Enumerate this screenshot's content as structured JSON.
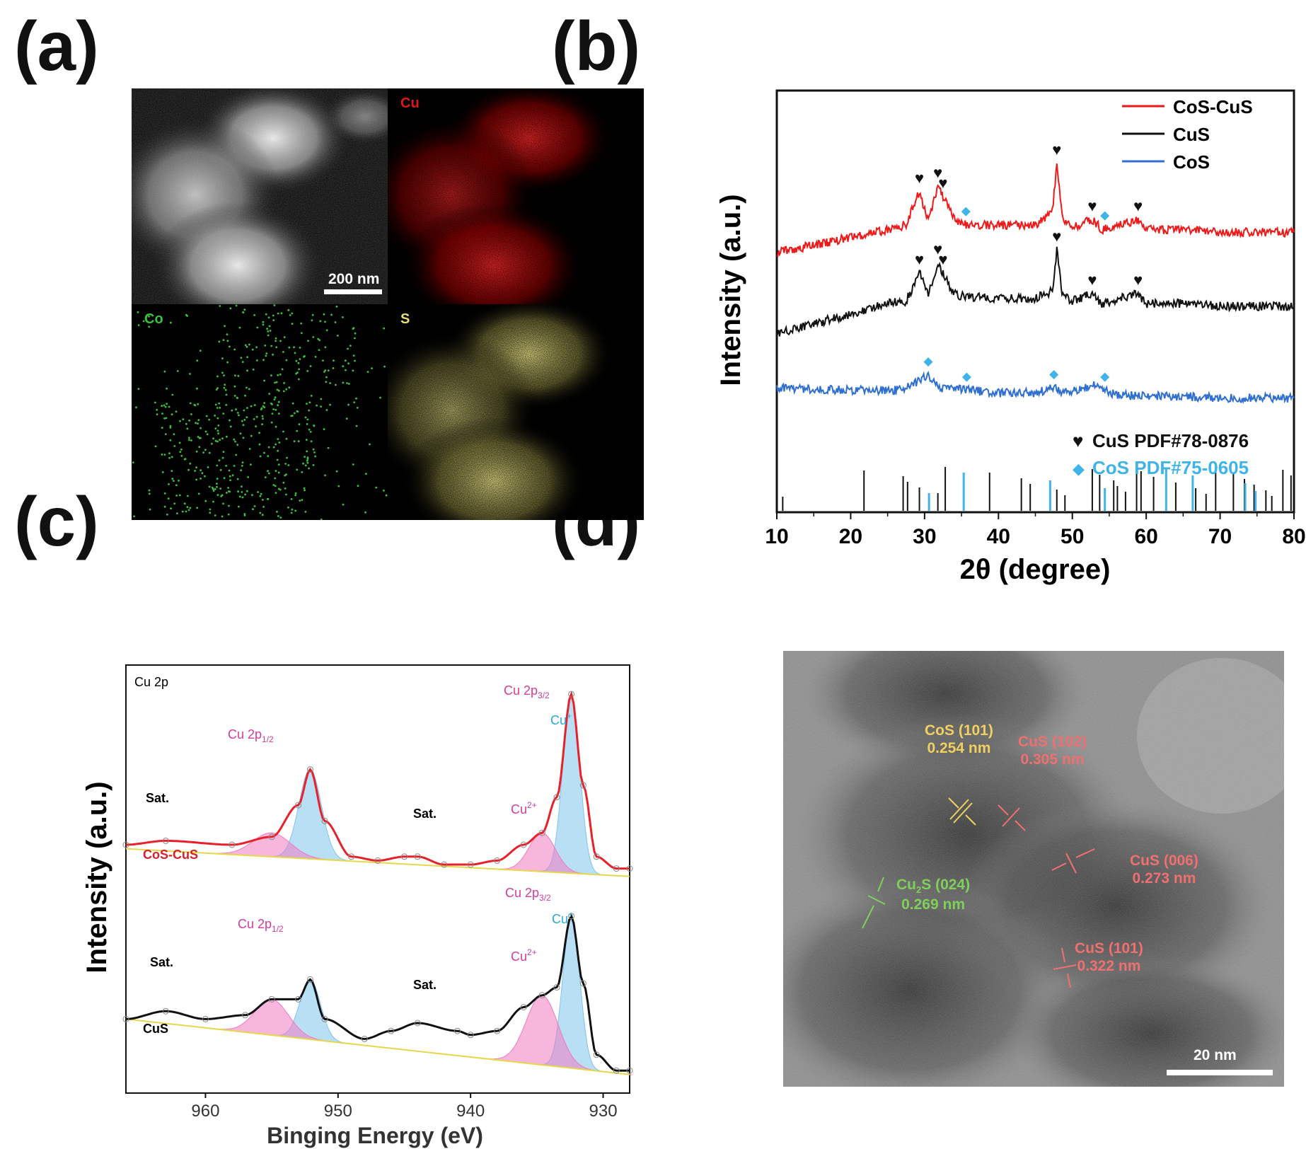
{
  "panel_labels": {
    "a": "(a)",
    "b": "(b)",
    "c": "(c)",
    "d": "(d)"
  },
  "panel_a": {
    "tiles": [
      {
        "label": "",
        "color": "#d8d8d8"
      },
      {
        "label": "Cu",
        "color": "#e01818"
      },
      {
        "label": "Co",
        "color": "#3cc03c"
      },
      {
        "label": "S",
        "color": "#e6dd78"
      }
    ],
    "scale_bar": "200 nm"
  },
  "panel_b": {
    "legend": [
      {
        "label": "CoS-CuS",
        "color": "#ee1a1a"
      },
      {
        "label": "CuS",
        "color": "#111111"
      },
      {
        "label": "CoS",
        "color": "#2e6fd0"
      }
    ],
    "reference_legend": [
      {
        "symbol": "♥",
        "label": "CuS PDF#78-0876",
        "color": "#111111"
      },
      {
        "symbol": "◆",
        "label": "CoS PDF#75-0605",
        "color": "#3fb4ea"
      }
    ]
  },
  "panel_c": {
    "corner_label": "Cu 2p",
    "top_spectrum": {
      "sample": "CoS-CuS",
      "labels": {
        "p12": "Cu 2p",
        "p12_sub": "1/2",
        "p32": "Cu 2p",
        "p32_sub": "3/2",
        "cu_plus": "Cu",
        "cu_plus_sup": "+",
        "cu_2plus": "Cu",
        "cu_2plus_sup": "2+",
        "sat1": "Sat.",
        "sat2": "Sat."
      }
    },
    "bottom_spectrum": {
      "sample": "CuS",
      "labels": {
        "p12": "Cu 2p",
        "p12_sub": "1/2",
        "p32": "Cu 2p",
        "p32_sub": "3/2",
        "cu_plus": "Cu",
        "cu_plus_sup": "+",
        "cu_2plus": "Cu",
        "cu_2plus_sup": "2+",
        "sat1": "Sat.",
        "sat2": "Sat."
      }
    }
  },
  "panel_d": {
    "annotations": [
      {
        "phase": "CoS (101)",
        "d": "0.254 nm",
        "color": "#f0d060"
      },
      {
        "phase": "CuS (102)",
        "d": "0.305 nm",
        "color": "#f07070"
      },
      {
        "phase": "CuS (006)",
        "d": "0.273 nm",
        "color": "#f07070"
      },
      {
        "phase_main": "Cu",
        "phase_sub": "2",
        "phase_rest": "S (024)",
        "d": "0.269 nm",
        "color": "#7ed05a"
      },
      {
        "phase": "CuS (101)",
        "d": "0.322 nm",
        "color": "#f07070"
      }
    ],
    "scale_bar": "20 nm"
  },
  "chart_data": [
    {
      "type": "line",
      "title": "",
      "xlabel": "2θ (degree)",
      "ylabel": "Intensity (a.u.)",
      "xlim": [
        10,
        80
      ],
      "xticks": [
        10,
        20,
        30,
        40,
        50,
        60,
        70,
        80
      ],
      "yticks_shown": false,
      "series": [
        {
          "name": "CoS-CuS",
          "color": "#ee1a1a",
          "x": [
            10,
            15,
            20,
            25,
            27.5,
            29.3,
            30.5,
            31.8,
            32.5,
            33.8,
            35,
            40,
            45,
            47.3,
            47.9,
            48.6,
            50,
            52.7,
            54,
            58.9,
            60,
            65,
            70,
            75,
            80
          ],
          "y": [
            0.58,
            0.61,
            0.64,
            0.67,
            0.69,
            0.82,
            0.7,
            0.84,
            0.8,
            0.72,
            0.69,
            0.69,
            0.69,
            0.74,
            0.93,
            0.72,
            0.68,
            0.71,
            0.67,
            0.71,
            0.67,
            0.67,
            0.66,
            0.66,
            0.66
          ]
        },
        {
          "name": "CuS",
          "color": "#111111",
          "x": [
            10,
            15,
            20,
            25,
            27.5,
            29.3,
            30.5,
            31.8,
            32.5,
            33.8,
            35,
            40,
            45,
            47.3,
            47.9,
            48.6,
            50,
            52.7,
            54,
            58.9,
            60,
            65,
            70,
            75,
            80
          ],
          "y": [
            0.26,
            0.3,
            0.34,
            0.38,
            0.39,
            0.5,
            0.42,
            0.54,
            0.5,
            0.42,
            0.41,
            0.4,
            0.4,
            0.43,
            0.59,
            0.42,
            0.39,
            0.42,
            0.38,
            0.42,
            0.38,
            0.38,
            0.37,
            0.37,
            0.37
          ]
        },
        {
          "name": "CoS",
          "color": "#2e6fd0",
          "x": [
            10,
            20,
            27,
            30.5,
            32,
            35.7,
            40,
            45,
            47.5,
            49,
            52.8,
            54.4,
            56,
            60,
            70,
            80
          ],
          "y": [
            0.05,
            0.04,
            0.04,
            0.1,
            0.05,
            0.04,
            0.03,
            0.03,
            0.05,
            0.03,
            0.06,
            0.04,
            0.02,
            0.02,
            0.01,
            0.01
          ]
        }
      ],
      "reference_lines": {
        "CuS PDF#78-0876": [
          10.8,
          21.8,
          27.1,
          27.7,
          29.3,
          31.8,
          32.8,
          38.8,
          43.1,
          44.3,
          47.9,
          49.0,
          52.7,
          53.7,
          55.6,
          56.1,
          57.2,
          58.7,
          59.3,
          61.0,
          64.0,
          66.7,
          68.1,
          69.4,
          71.8,
          73.3,
          74.6,
          76.2,
          77.0,
          78.5,
          79.6
        ],
        "CoS PDF#75-0605": [
          30.6,
          35.3,
          47.0,
          54.4,
          62.7,
          66.3,
          73.4,
          74.8
        ]
      }
    },
    {
      "type": "line",
      "title": "",
      "xlabel": "Binging Energy (eV)",
      "ylabel": "Intensity (a.u.)",
      "xlim": [
        966,
        928
      ],
      "x_reversed": true,
      "xticks": [
        960,
        950,
        940,
        930
      ],
      "series": [
        {
          "name": "CoS-CuS",
          "color": "#e8202a",
          "x": [
            966,
            963,
            958,
            955,
            953,
            952.1,
            951,
            949,
            947,
            945,
            944,
            942,
            940,
            938,
            936,
            934.6,
            933.5,
            932.4,
            931.5,
            930.5,
            929,
            928
          ],
          "y": [
            0.6,
            0.61,
            0.6,
            0.62,
            0.7,
            0.79,
            0.66,
            0.57,
            0.56,
            0.57,
            0.57,
            0.55,
            0.55,
            0.56,
            0.6,
            0.63,
            0.72,
            0.98,
            0.75,
            0.57,
            0.54,
            0.54
          ]
        },
        {
          "name": "CuS",
          "color": "#111111",
          "x": [
            966,
            963,
            960,
            957,
            955,
            953,
            952.1,
            951,
            948,
            946,
            944,
            941,
            940,
            938,
            936,
            934.6,
            933.5,
            932.4,
            931.5,
            930.5,
            929,
            928
          ],
          "y": [
            0.16,
            0.18,
            0.16,
            0.17,
            0.21,
            0.21,
            0.26,
            0.16,
            0.11,
            0.13,
            0.15,
            0.13,
            0.12,
            0.13,
            0.19,
            0.22,
            0.24,
            0.42,
            0.25,
            0.07,
            0.03,
            0.03
          ]
        }
      ]
    }
  ]
}
